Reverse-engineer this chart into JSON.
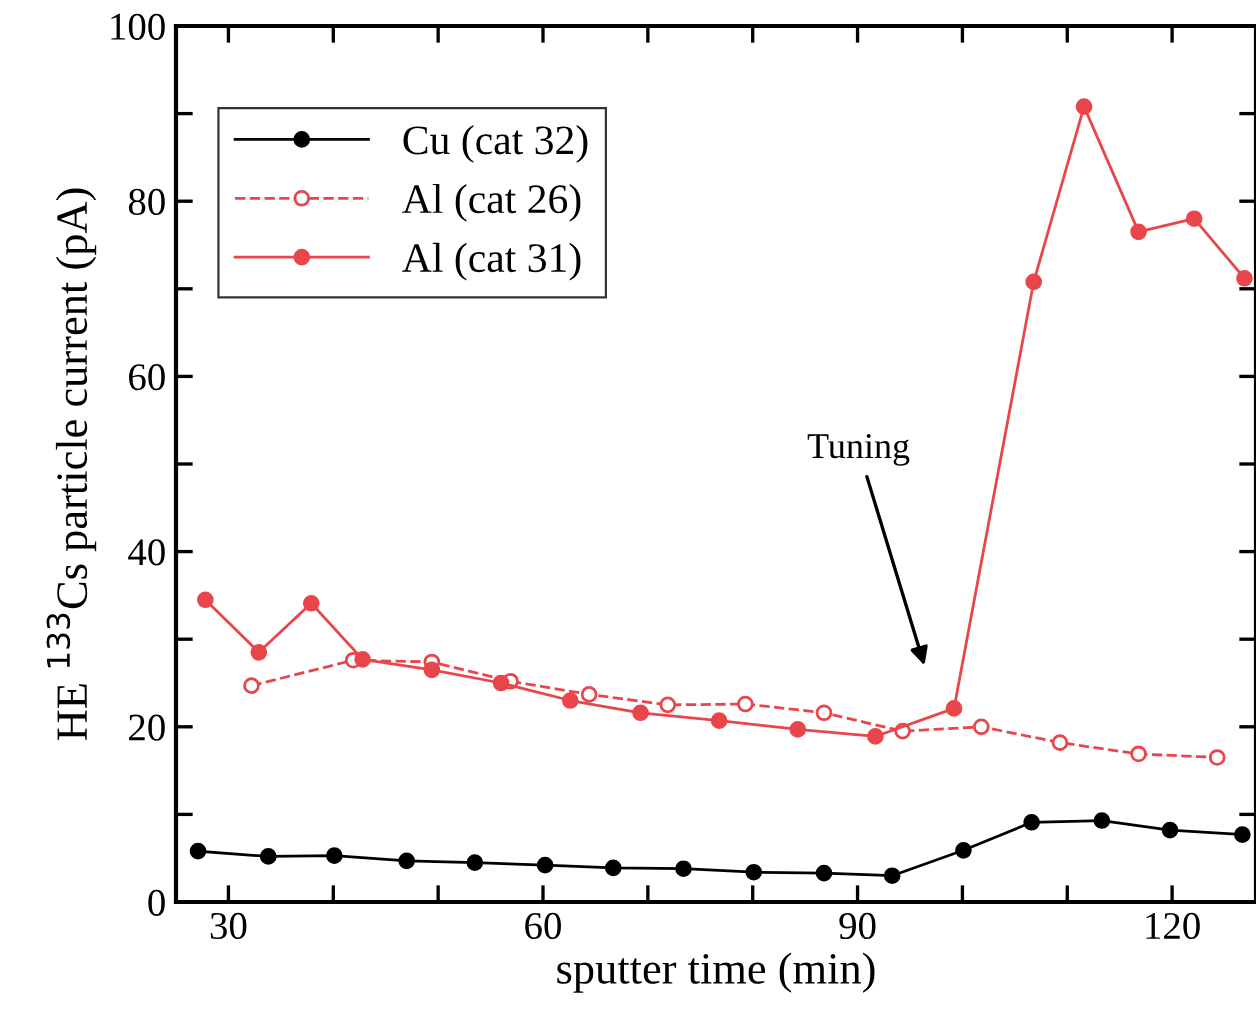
{
  "chart_data": {
    "type": "line",
    "xlabel": "sputter time (min)",
    "ylabel": "HE $^{133}$Cs particle current (pA)",
    "xlim": [
      25,
      128
    ],
    "ylim": [
      0,
      100
    ],
    "xticks": [
      30,
      {
        "value": 40,
        "label": null
      },
      {
        "value": 50,
        "label": null
      },
      60,
      {
        "value": 70,
        "label": null
      },
      {
        "value": 80,
        "label": null
      },
      90,
      {
        "value": 100,
        "label": null
      },
      {
        "value": 110,
        "label": null
      },
      120
    ],
    "yticks": [
      0,
      {
        "value": 10,
        "label": null
      },
      20,
      {
        "value": 30,
        "label": null
      },
      40,
      {
        "value": 50,
        "label": null
      },
      60,
      {
        "value": 70,
        "label": null
      },
      80,
      {
        "value": 90,
        "label": null
      },
      100
    ],
    "grid": false,
    "legend": "top left",
    "marker": "circle",
    "series": [
      {
        "name": "Cu (cat 32)",
        "color": "#000000",
        "line_style": "solid",
        "x": [
          27.1,
          33.8,
          40.1,
          47.0,
          53.5,
          60.2,
          66.7,
          73.4,
          80.1,
          86.8,
          93.3,
          100.1,
          106.6,
          113.3,
          119.8,
          126.7
        ],
        "values": [
          5.8,
          5.2,
          5.3,
          4.7,
          4.5,
          4.2,
          3.9,
          3.8,
          3.4,
          3.3,
          3.0,
          5.9,
          9.1,
          9.3,
          8.2,
          7.7
        ]
      },
      {
        "name": "Al (cat 26)",
        "color": "#e8464b",
        "line_style": "dashed",
        "x": [
          32.2,
          41.9,
          49.4,
          56.9,
          64.4,
          71.9,
          79.3,
          86.8,
          94.3,
          101.8,
          109.3,
          116.8,
          124.3
        ],
        "values": [
          24.7,
          27.6,
          27.4,
          25.2,
          23.7,
          22.5,
          22.6,
          21.6,
          19.5,
          20.0,
          18.2,
          16.9,
          16.5
        ]
      },
      {
        "name": "Al (cat 31)",
        "color": "#e8464b",
        "line_style": "solid",
        "x": [
          27.8,
          32.9,
          37.9,
          42.8,
          49.4,
          56.0,
          62.6,
          69.3,
          76.8,
          84.3,
          91.7,
          99.2,
          106.8,
          111.6,
          116.8,
          122.1,
          126.9
        ],
        "values": [
          34.5,
          28.5,
          34.1,
          27.7,
          26.5,
          25.0,
          23.0,
          21.6,
          20.7,
          19.7,
          18.9,
          22.1,
          70.8,
          90.8,
          76.5,
          78.0,
          71.2
        ]
      }
    ],
    "annotations": [
      "Tuning"
    ]
  }
}
